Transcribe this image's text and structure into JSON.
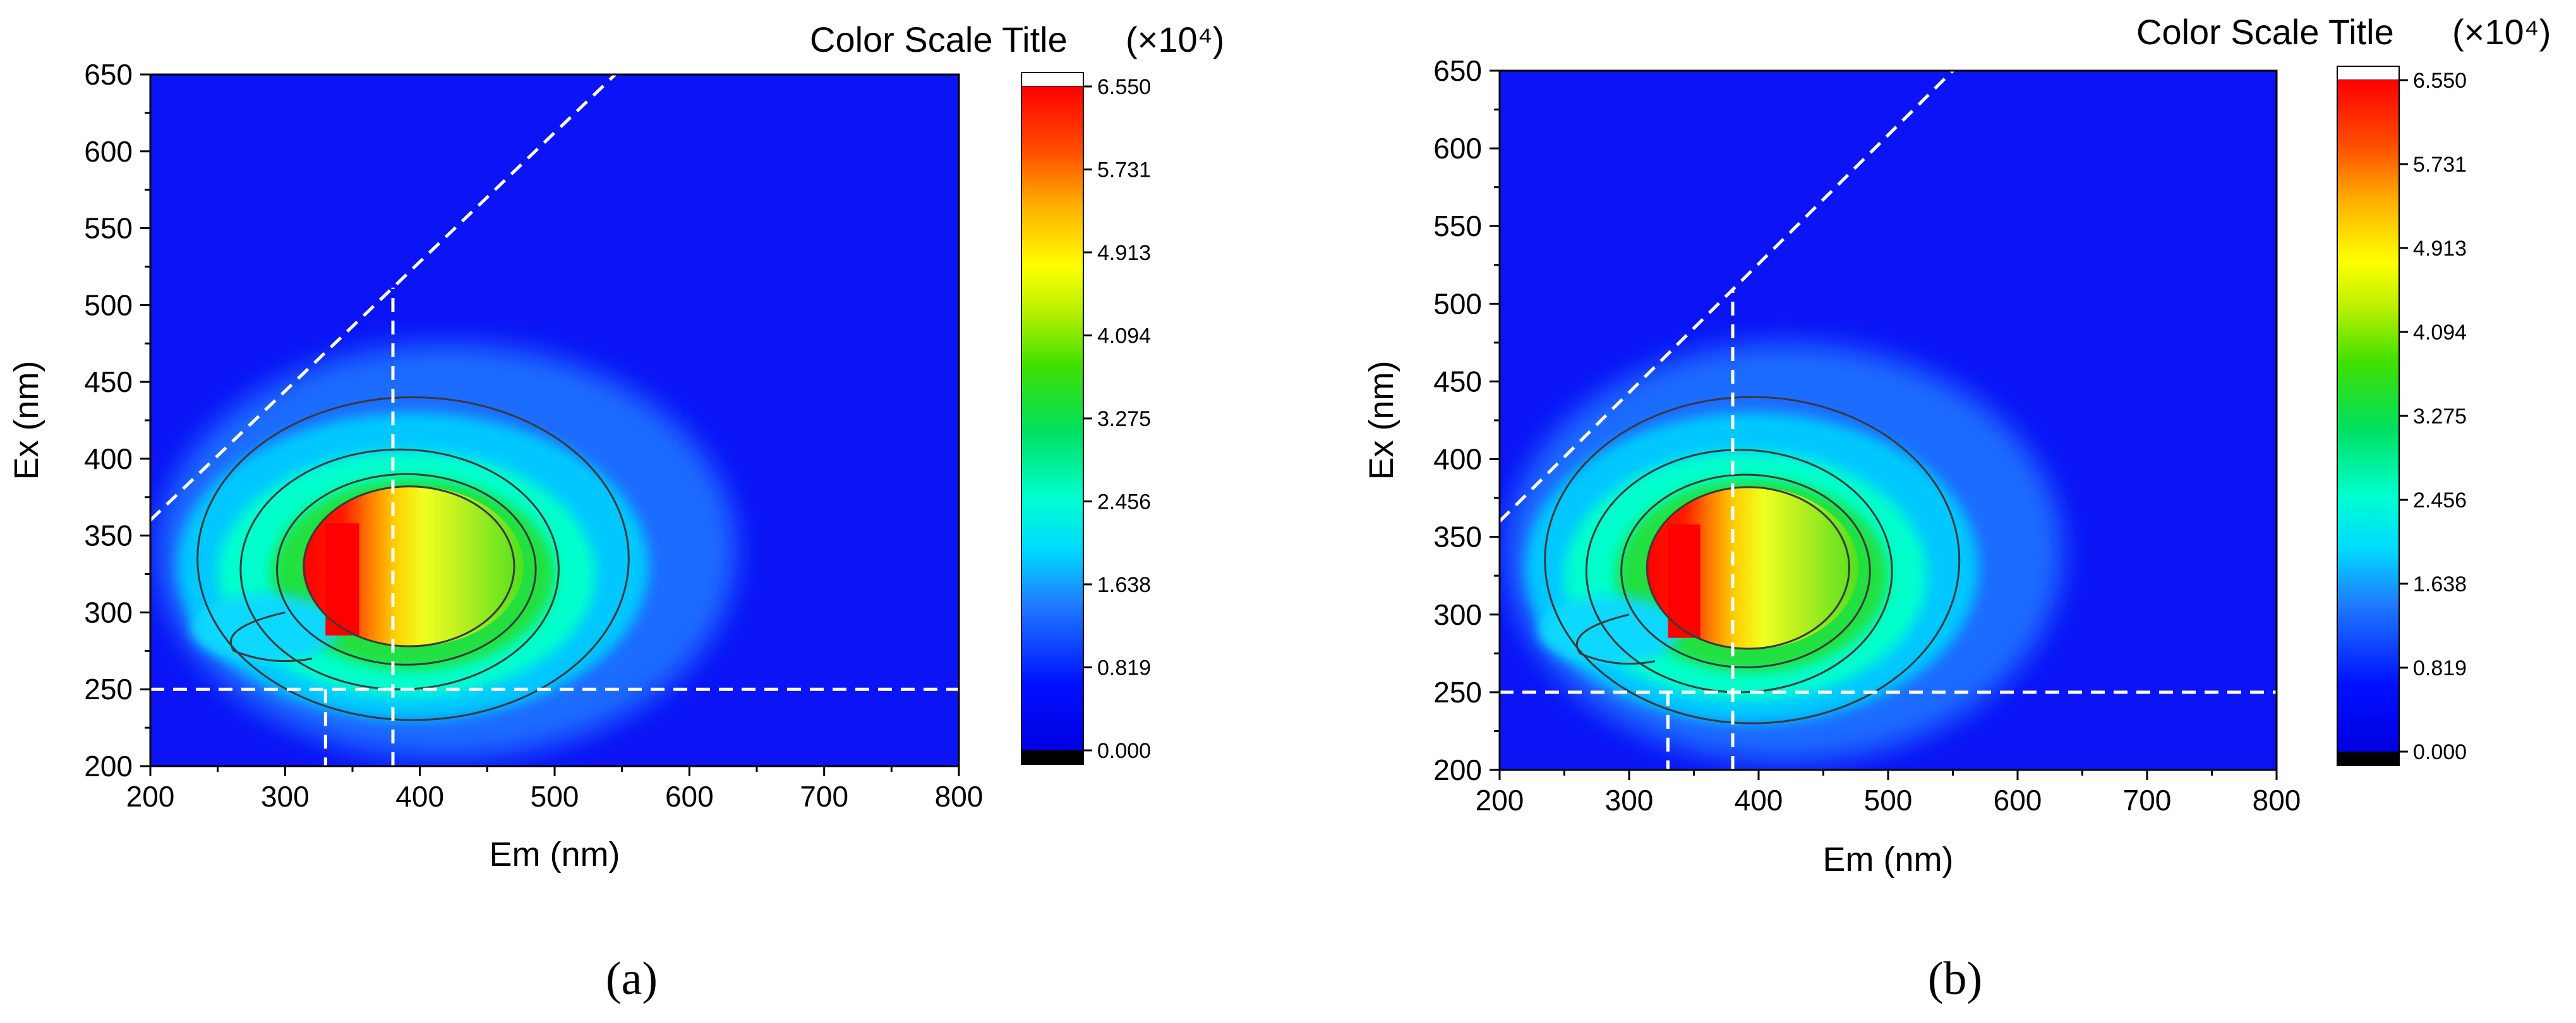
{
  "chart_data": [
    {
      "type": "heatmap",
      "panel_label": "(a)",
      "xlabel": "Em (nm)",
      "ylabel": "Ex (nm)",
      "xlim": [
        200,
        800
      ],
      "ylim": [
        200,
        650
      ],
      "xticks": [
        "200",
        "300",
        "400",
        "500",
        "600",
        "700",
        "800"
      ],
      "yticks": [
        "200",
        "250",
        "300",
        "350",
        "400",
        "450",
        "500",
        "550",
        "600",
        "650"
      ],
      "colorbar": {
        "title": "Color Scale Title",
        "multiplier": "(×10⁴)",
        "min": 0,
        "max": 6.55,
        "ticks": [
          "0.000",
          "0.819",
          "1.638",
          "2.456",
          "3.275",
          "4.094",
          "4.913",
          "5.731",
          "6.550"
        ]
      },
      "peak": {
        "em": 340,
        "ex": 320,
        "value": 6.55
      },
      "guide_lines": {
        "diagonal": [
          [
            200,
            360
          ],
          [
            545,
            650
          ]
        ],
        "horizontal_ex": 250,
        "vertical_em": [
          330,
          380
        ]
      },
      "grid": false
    },
    {
      "type": "heatmap",
      "panel_label": "(b)",
      "xlabel": "Em (nm)",
      "ylabel": "Ex (nm)",
      "xlim": [
        200,
        800
      ],
      "ylim": [
        200,
        650
      ],
      "xticks": [
        "200",
        "300",
        "400",
        "500",
        "600",
        "700",
        "800"
      ],
      "yticks": [
        "200",
        "250",
        "300",
        "350",
        "400",
        "450",
        "500",
        "550",
        "600",
        "650"
      ],
      "colorbar": {
        "title": "Color Scale Title",
        "multiplier": "(×10⁴)",
        "min": 0,
        "max": 6.55,
        "ticks": [
          "0.000",
          "0.819",
          "1.638",
          "2.456",
          "3.275",
          "4.094",
          "4.913",
          "5.731",
          "6.550"
        ]
      },
      "peak": {
        "em": 340,
        "ex": 320,
        "value": 6.55
      },
      "guide_lines": {
        "diagonal": [
          [
            200,
            360
          ],
          [
            550,
            650
          ]
        ],
        "horizontal_ex": 250,
        "vertical_em": [
          330,
          380
        ]
      },
      "grid": false
    }
  ]
}
